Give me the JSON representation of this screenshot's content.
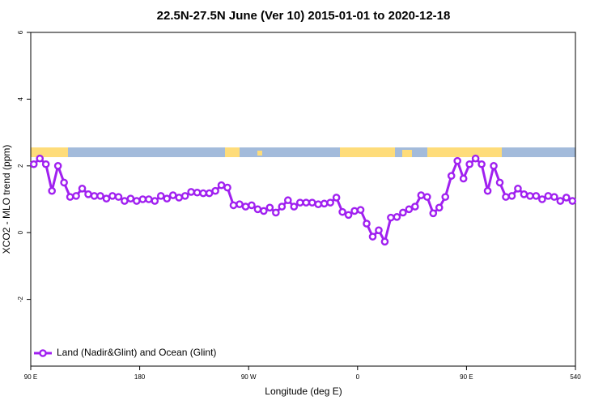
{
  "chart_data": {
    "type": "line",
    "title": "22.5N-27.5N June (Ver 10)   2015-01-01 to 2020-12-18",
    "xlabel": "Longitude (deg E)",
    "ylabel": "XCO2 - MLO trend (ppm)",
    "legend": "bottom-left",
    "xlim": [
      90,
      540
    ],
    "xticks": [
      {
        "value": 90,
        "label": "90 E"
      },
      180,
      {
        "value": 270,
        "label": "90 W"
      },
      {
        "value": 360,
        "label": "0"
      },
      {
        "value": 450,
        "label": "90 E"
      },
      540
    ],
    "ylim": [
      -4,
      6
    ],
    "yticks": [
      -2,
      0,
      2,
      4,
      6
    ],
    "series": [
      {
        "name": "Land (Nadir&Glint) and Ocean (Glint)",
        "color": "#a020f0",
        "x": [
          92.5,
          97.5,
          102.5,
          107.5,
          112.5,
          117.5,
          122.5,
          127.5,
          132.5,
          137.5,
          142.5,
          147.5,
          152.5,
          157.5,
          162.5,
          167.5,
          172.5,
          177.5,
          182.5,
          187.5,
          192.5,
          197.5,
          202.5,
          207.5,
          212.5,
          217.5,
          222.5,
          227.5,
          232.5,
          237.5,
          242.5,
          247.5,
          252.5,
          257.5,
          262.5,
          267.5,
          272.5,
          277.5,
          282.5,
          287.5,
          292.5,
          297.5,
          302.5,
          307.5,
          312.5,
          317.5,
          322.5,
          327.5,
          332.5,
          337.5,
          342.5,
          347.5,
          352.5,
          357.5,
          362.5,
          367.5,
          372.5,
          377.5,
          382.5,
          387.5,
          392.5,
          397.5,
          402.5,
          407.5,
          412.5,
          417.5,
          422.5,
          427.5,
          432.5,
          437.5,
          442.5,
          447.5,
          452.5,
          457.5,
          462.5,
          467.5,
          472.5,
          477.5,
          482.5,
          487.5,
          492.5,
          497.5,
          502.5,
          507.5,
          512.5,
          517.5,
          522.5,
          527.5,
          532.5,
          537.5
        ],
        "values": [
          2.05,
          2.22,
          2.05,
          1.25,
          2.0,
          1.5,
          1.07,
          1.1,
          1.32,
          1.15,
          1.1,
          1.1,
          1.02,
          1.1,
          1.07,
          0.95,
          1.02,
          0.95,
          1.0,
          1.0,
          0.95,
          1.1,
          1.02,
          1.12,
          1.05,
          1.1,
          1.22,
          1.2,
          1.18,
          1.18,
          1.25,
          1.42,
          1.35,
          0.82,
          0.85,
          0.78,
          0.82,
          0.7,
          0.65,
          0.75,
          0.6,
          0.78,
          0.97,
          0.78,
          0.9,
          0.9,
          0.9,
          0.85,
          0.87,
          0.9,
          1.05,
          0.62,
          0.53,
          0.65,
          0.68,
          0.27,
          -0.12,
          0.07,
          -0.27,
          0.45,
          0.47,
          0.6,
          0.7,
          0.78,
          1.12,
          1.07,
          0.58,
          0.75,
          1.07,
          1.7,
          2.15,
          1.62,
          2.05,
          2.22,
          2.05,
          1.25,
          2.0,
          1.5,
          1.07,
          1.1,
          1.32,
          1.15,
          1.1,
          1.1,
          1.0,
          1.1,
          1.07,
          0.95,
          1.05,
          0.95
        ]
      }
    ]
  }
}
